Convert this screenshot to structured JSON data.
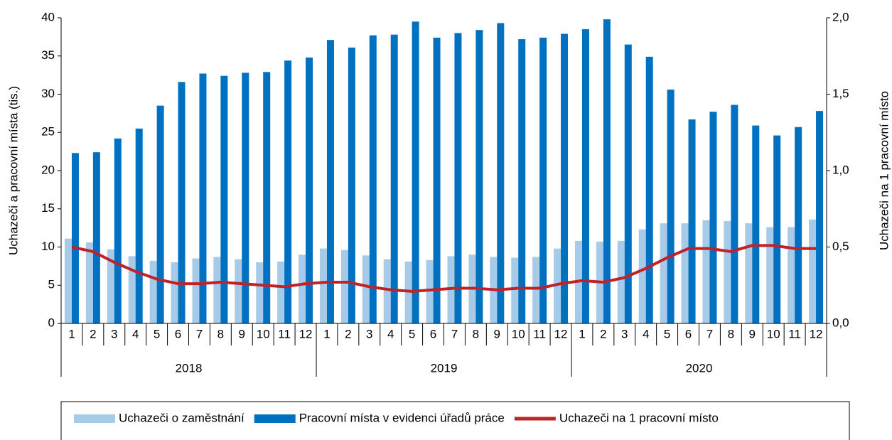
{
  "chart_data": {
    "type": "bar",
    "y_label": "Uchazeči a pracovní místa (tis.)",
    "y2_label": "Uchazeči na 1 pracovní místo",
    "categories": [
      "1",
      "2",
      "3",
      "4",
      "5",
      "6",
      "7",
      "8",
      "9",
      "10",
      "11",
      "12",
      "1",
      "2",
      "3",
      "4",
      "5",
      "6",
      "7",
      "8",
      "9",
      "10",
      "11",
      "12",
      "1",
      "2",
      "3",
      "4",
      "5",
      "6",
      "7",
      "8",
      "9",
      "10",
      "11",
      "12"
    ],
    "groups": [
      "2018",
      "2019",
      "2020"
    ],
    "series": [
      {
        "name": "Uchazeči o zaměstnání",
        "color": "#a6cbe8",
        "type": "bar",
        "values": [
          11.1,
          10.6,
          9.7,
          8.8,
          8.2,
          8.0,
          8.5,
          8.7,
          8.4,
          8.0,
          8.1,
          9.0,
          9.8,
          9.6,
          8.9,
          8.4,
          8.1,
          8.3,
          8.8,
          9.0,
          8.7,
          8.6,
          8.7,
          9.8,
          10.8,
          10.7,
          10.8,
          12.3,
          13.1,
          13.1,
          13.5,
          13.4,
          13.1,
          12.6,
          12.6,
          13.6
        ]
      },
      {
        "name": "Pracovní místa v evidenci úřadů práce",
        "color": "#0070c0",
        "type": "bar",
        "values": [
          22.3,
          22.4,
          24.2,
          25.5,
          28.5,
          31.6,
          32.7,
          32.4,
          32.8,
          32.9,
          34.4,
          34.8,
          37.1,
          36.1,
          37.7,
          37.8,
          39.5,
          37.4,
          38.0,
          38.4,
          39.3,
          37.2,
          37.4,
          37.9,
          38.5,
          39.8,
          36.5,
          34.9,
          30.6,
          26.7,
          27.7,
          28.6,
          25.9,
          24.6,
          25.7,
          27.8
        ]
      },
      {
        "name": "Uchazeči na 1 pracovní místo",
        "color": "#c0222a",
        "type": "line",
        "axis": "y2",
        "values": [
          0.5,
          0.47,
          0.4,
          0.34,
          0.29,
          0.26,
          0.26,
          0.27,
          0.26,
          0.25,
          0.24,
          0.26,
          0.27,
          0.27,
          0.24,
          0.22,
          0.21,
          0.22,
          0.23,
          0.23,
          0.22,
          0.23,
          0.23,
          0.26,
          0.28,
          0.27,
          0.3,
          0.36,
          0.43,
          0.49,
          0.49,
          0.47,
          0.51,
          0.51,
          0.49,
          0.49
        ]
      }
    ],
    "ylim": [
      0,
      40
    ],
    "yticks": [
      0,
      5,
      10,
      15,
      20,
      25,
      30,
      35,
      40
    ],
    "y2lim": [
      0,
      2
    ],
    "y2ticks": [
      {
        "value": 0,
        "label": "0,0"
      },
      {
        "value": 0.5,
        "label": "0,5"
      },
      {
        "value": 1,
        "label": "1,0"
      },
      {
        "value": 1.5,
        "label": "1,5"
      },
      {
        "value": 2,
        "label": "2,0"
      }
    ],
    "legend": "bottom",
    "grid": false
  }
}
